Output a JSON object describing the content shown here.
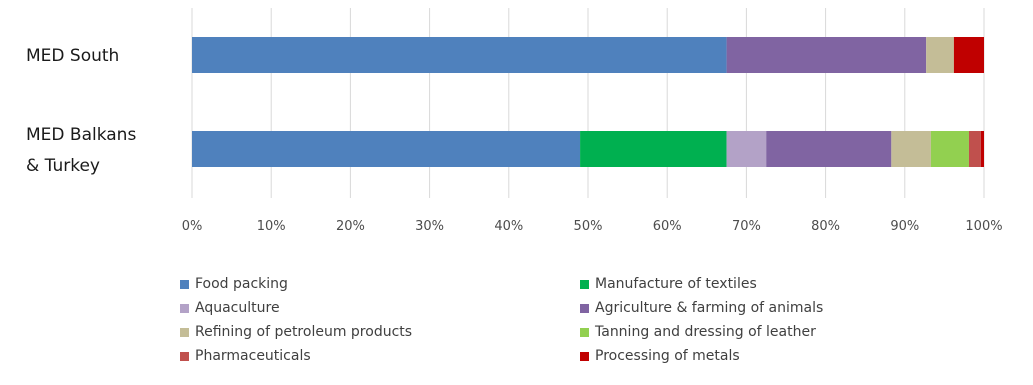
{
  "chart_data": {
    "type": "bar",
    "orientation": "horizontal",
    "stacked": "percent",
    "categories": [
      "MED South",
      "MED Balkans\n& Turkey"
    ],
    "x_ticks": [
      "0%",
      "10%",
      "20%",
      "30%",
      "40%",
      "50%",
      "60%",
      "70%",
      "80%",
      "90%",
      "100%"
    ],
    "xlim": [
      0,
      100
    ],
    "grid": "vertical",
    "legend_position": "bottom",
    "series": [
      {
        "name": "Food packing",
        "color": "#4f81bd",
        "values": [
          67.5,
          49.0
        ]
      },
      {
        "name": "Manufacture of textiles",
        "color": "#00b050",
        "values": [
          0,
          18.5
        ]
      },
      {
        "name": "Aquaculture",
        "color": "#b3a2c7",
        "values": [
          0,
          5.0
        ]
      },
      {
        "name": "Agriculture & farming of animals",
        "color": "#8064a2",
        "values": [
          25.2,
          15.8
        ]
      },
      {
        "name": "Refining of petroleum products",
        "color": "#c4bd97",
        "values": [
          3.5,
          5.0
        ]
      },
      {
        "name": "Tanning and dressing of leather",
        "color": "#92d050",
        "values": [
          0,
          4.8
        ]
      },
      {
        "name": "Pharmaceuticals",
        "color": "#c0504d",
        "values": [
          0,
          1.5
        ]
      },
      {
        "name": "Processing of metals",
        "color": "#c00000",
        "values": [
          3.8,
          0.4
        ]
      }
    ]
  }
}
